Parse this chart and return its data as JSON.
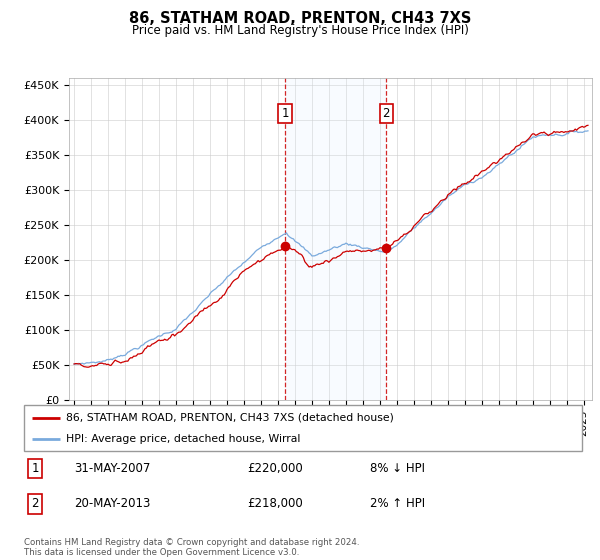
{
  "title": "86, STATHAM ROAD, PRENTON, CH43 7XS",
  "subtitle": "Price paid vs. HM Land Registry's House Price Index (HPI)",
  "ylabel_ticks": [
    "£0",
    "£50K",
    "£100K",
    "£150K",
    "£200K",
    "£250K",
    "£300K",
    "£350K",
    "£400K",
    "£450K"
  ],
  "ytick_values": [
    0,
    50000,
    100000,
    150000,
    200000,
    250000,
    300000,
    350000,
    400000,
    450000
  ],
  "ylim": [
    0,
    460000
  ],
  "xlim_start": 1994.7,
  "xlim_end": 2025.5,
  "sale1_x": 2007.42,
  "sale1_y": 220000,
  "sale2_x": 2013.38,
  "sale2_y": 218000,
  "sale1_label": "31-MAY-2007",
  "sale1_price": "£220,000",
  "sale1_hpi": "8% ↓ HPI",
  "sale2_label": "20-MAY-2013",
  "sale2_price": "£218,000",
  "sale2_hpi": "2% ↑ HPI",
  "line_color_red": "#cc0000",
  "line_color_blue": "#7aaadd",
  "shade_color": "#ddeeff",
  "vline_color": "#cc0000",
  "legend_label_red": "86, STATHAM ROAD, PRENTON, CH43 7XS (detached house)",
  "legend_label_blue": "HPI: Average price, detached house, Wirral",
  "footer": "Contains HM Land Registry data © Crown copyright and database right 2024.\nThis data is licensed under the Open Government Licence v3.0.",
  "background_color": "#ffffff",
  "grid_color": "#cccccc"
}
